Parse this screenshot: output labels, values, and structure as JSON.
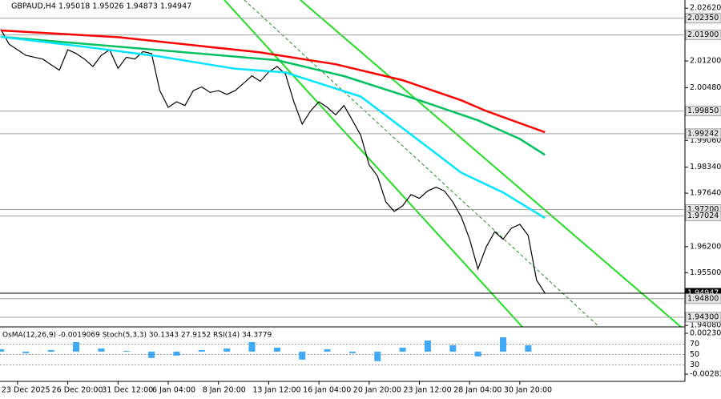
{
  "chart_data": {
    "type": "line",
    "title": "GBPAUD,H4  1.95018 1.95026 1.94873 1.94947",
    "categories": [
      null,
      null,
      "23 Dec 2025",
      null,
      null,
      null,
      null,
      null,
      "26 Dec 20:00",
      null,
      null,
      null,
      null,
      null,
      "31 Dec 12:00",
      null,
      null,
      null,
      null,
      null,
      "6 Jan 04:00",
      null,
      null,
      null,
      null,
      null,
      "8 Jan 20:00",
      null,
      null,
      null,
      null,
      null,
      "13 Jan 12:00",
      null,
      null,
      null,
      null,
      null,
      "16 Jan 04:00",
      null,
      null,
      null,
      null,
      null,
      "20 Jan 20:00",
      null,
      null,
      null,
      null,
      null,
      "23 Jan 12:00",
      null,
      null,
      null,
      null,
      null,
      "28 Jan 04:00",
      null,
      null,
      null,
      null,
      null,
      "30 Jan 20:00",
      null,
      null,
      null
    ],
    "series": [
      {
        "color": "#000000",
        "values": [
          2.0205,
          2.0165,
          2.015,
          2.0135,
          2.013,
          2.0125,
          2.011,
          2.0095,
          2.015,
          2.014,
          2.0125,
          2.0105,
          2.0135,
          2.015,
          2.01,
          2.013,
          2.0125,
          2.0145,
          2.014,
          2.004,
          1.9995,
          2.001,
          2.0,
          2.004,
          2.005,
          2.0035,
          2.004,
          2.003,
          2.004,
          2.006,
          2.008,
          2.0065,
          2.009,
          2.0105,
          2.0085,
          2.001,
          1.995,
          1.9985,
          2.001,
          1.9995,
          1.9975,
          2.0,
          1.996,
          1.992,
          1.984,
          1.981,
          1.974,
          1.9715,
          1.973,
          1.976,
          1.975,
          1.977,
          1.978,
          1.977,
          1.974,
          1.97,
          1.964,
          1.956,
          1.962,
          1.966,
          1.964,
          1.967,
          1.968,
          1.965,
          1.953,
          1.94947
        ]
      },
      {
        "color": "#ff0000",
        "x": [
          0,
          14,
          31,
          40,
          48,
          55,
          58,
          65
        ],
        "values": [
          2.0202,
          2.0184,
          2.0143,
          2.0111,
          2.0068,
          2.0014,
          1.9985,
          1.9928
        ]
      },
      {
        "color": "#00c060",
        "x": [
          0,
          19,
          33,
          41,
          50,
          57,
          62,
          65
        ],
        "values": [
          2.0185,
          2.0149,
          2.0122,
          2.0079,
          2.0014,
          1.996,
          1.991,
          1.9867
        ]
      },
      {
        "color": "#00e5ff",
        "x": [
          0,
          10,
          19,
          28,
          34,
          43,
          50,
          55,
          60,
          65
        ],
        "values": [
          2.0185,
          2.0158,
          2.0132,
          2.0099,
          2.0089,
          2.0024,
          1.9905,
          1.9819,
          1.9766,
          1.9697
        ]
      }
    ],
    "ylim": [
      1.9404,
      2.0284
    ],
    "yticks": [
      {
        "value": 2.0262,
        "label": "2.02620"
      },
      {
        "value": 2.012,
        "label": "2.01200"
      },
      {
        "value": 2.0048,
        "label": "2.00480"
      },
      {
        "value": 1.9906,
        "label": "1.99060"
      },
      {
        "value": 1.9834,
        "label": "1.98340"
      },
      {
        "value": 1.9764,
        "label": "1.97640"
      },
      {
        "value": 1.962,
        "label": "1.96200"
      },
      {
        "value": 1.955,
        "label": "1.95500"
      },
      {
        "value": 1.9408,
        "label": "1.94080"
      }
    ],
    "levels": [
      {
        "value": 2.0235,
        "label": "2.02350",
        "color": "#a0a0a0"
      },
      {
        "value": 2.019,
        "label": "2.01900",
        "color": "#a0a0a0"
      },
      {
        "value": 1.9985,
        "label": "1.99850",
        "color": "#a0a0a0"
      },
      {
        "value": 1.99242,
        "label": "1.99242",
        "color": "#a0a0a0"
      },
      {
        "value": 1.972,
        "label": "1.97200",
        "color": "#a0a0a0"
      },
      {
        "value": 1.97024,
        "label": "1.97024",
        "color": "#a0a0a0"
      },
      {
        "value": 1.94947,
        "label": "1.94947",
        "color": "#000000"
      },
      {
        "value": 1.948,
        "label": "1.94800",
        "color": "#a0a0a0"
      },
      {
        "value": 1.943,
        "label": "1.94300",
        "color": "#a0a0a0"
      }
    ],
    "indicator": {
      "title": "OsMA(12,26,9) -0.0019069  Stoch(5,3,3) 30.1343 27.9152  RSI(14) 34.3779",
      "color": "#3fa9f5",
      "values": [
        0.0003,
        -0.0002,
        0.0002,
        0.0012,
        0.0004,
        0.0001,
        -0.0008,
        -0.0005,
        0.0002,
        0.0004,
        0.0012,
        0.0005,
        -0.001,
        0.0003,
        -0.0002,
        -0.0012,
        0.0005,
        0.0014,
        0.0008,
        -0.0006,
        0.0018,
        0.0008
      ],
      "ylim": [
        -0.003637,
        0.002909
      ],
      "yticks": [
        {
          "value": 0.002305,
          "label": "0.002305"
        },
        {
          "value": -0.002831,
          "label": "-0.002831"
        }
      ],
      "level_ylim": [
        0,
        100
      ],
      "level_ticks": [
        70,
        50,
        30
      ]
    }
  }
}
